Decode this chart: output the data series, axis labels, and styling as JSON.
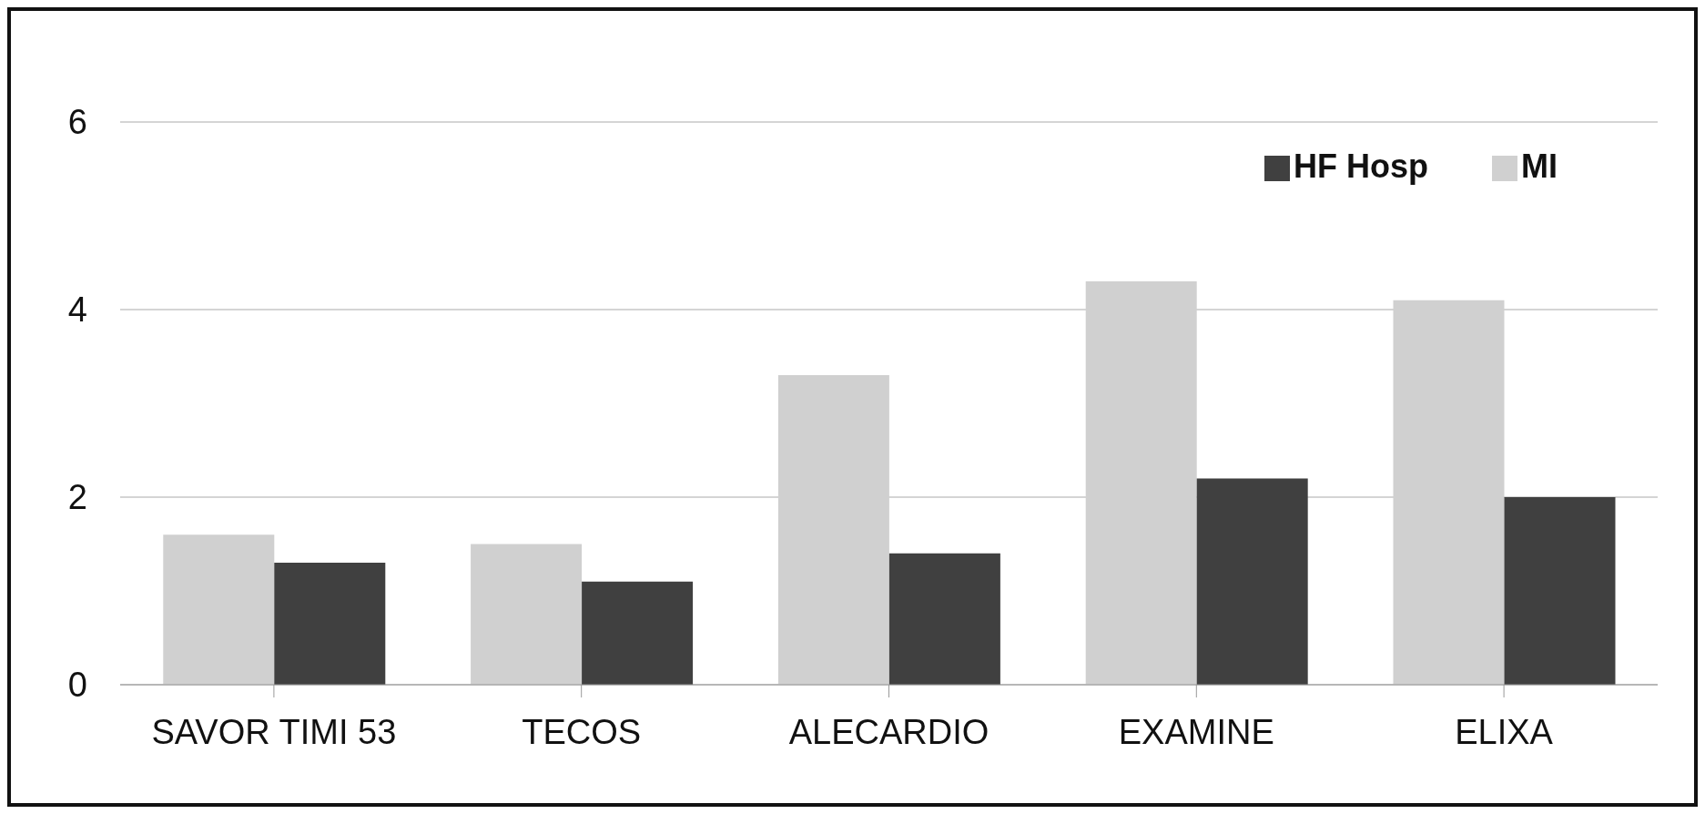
{
  "chart_data": {
    "type": "bar",
    "categories": [
      "SAVOR TIMI 53",
      "TECOS",
      "ALECARDIO",
      "EXAMINE",
      "ELIXA"
    ],
    "series": [
      {
        "name": "MI",
        "color": "#d0d0d0",
        "values": [
          1.6,
          1.5,
          3.3,
          4.3,
          4.1
        ]
      },
      {
        "name": "HF Hosp",
        "color": "#404040",
        "values": [
          1.3,
          1.1,
          1.4,
          2.2,
          2.0
        ]
      }
    ],
    "ylim": [
      0,
      6
    ],
    "yticks": [
      0,
      2,
      4,
      6
    ],
    "grid": "y",
    "legend": "top right"
  }
}
